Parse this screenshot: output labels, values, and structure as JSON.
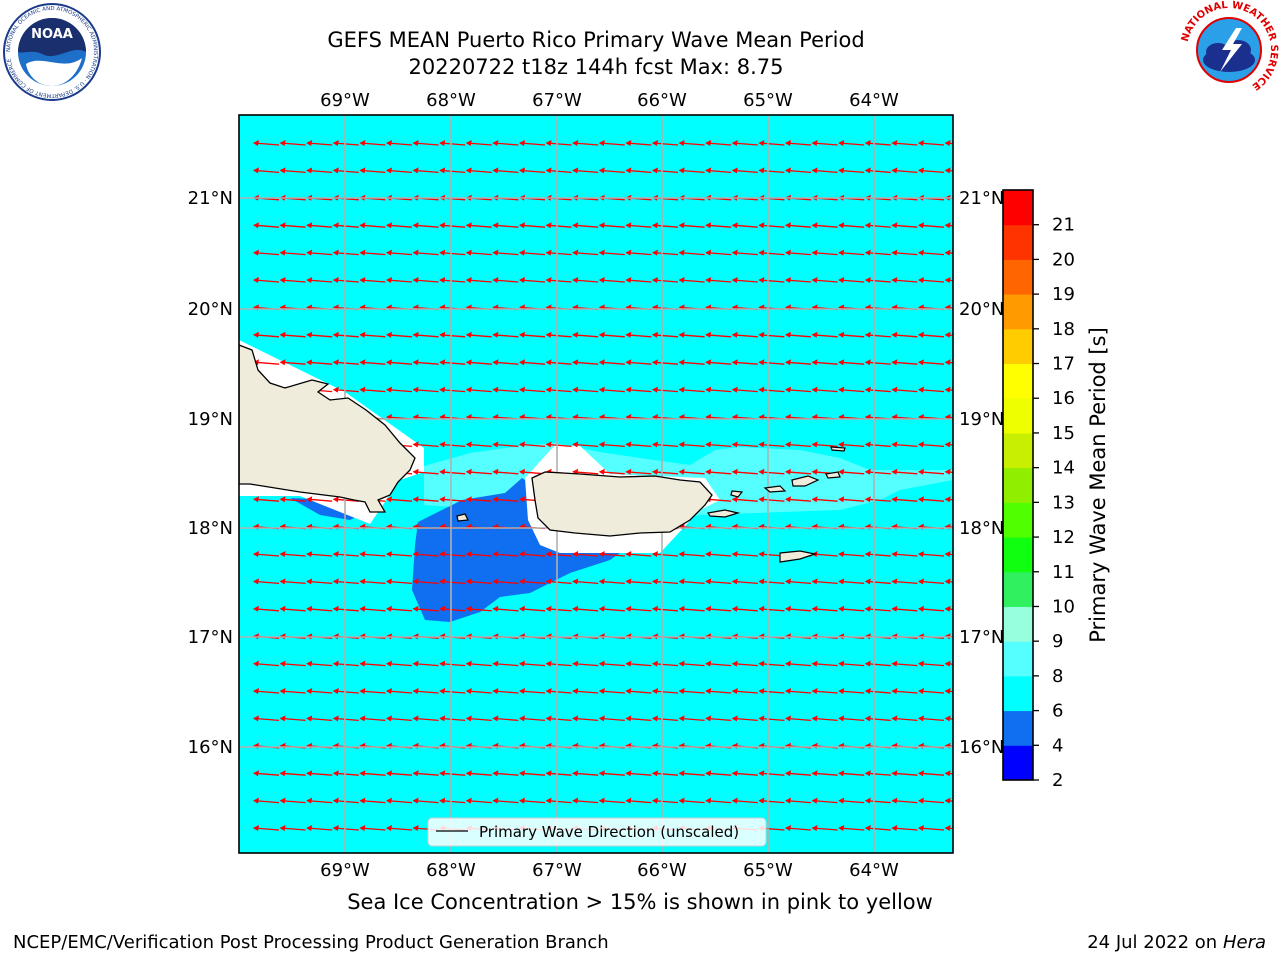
{
  "title_line1": "GEFS MEAN Puerto Rico Primary Wave Mean Period",
  "title_line2": "20220722 t18z 144h fcst   Max: 8.75",
  "subtitle": "Sea Ice Concentration > 15% is shown in pink to yellow",
  "footer_left": "NCEP/EMC/Verification Post Processing Product Generation Branch",
  "footer_right_prefix": "24 Jul 2022 on ",
  "footer_right_host": "Hera",
  "legend_label": "Primary Wave Direction (unscaled)",
  "colorbar_label": "Primary Wave Mean Period [s]",
  "lon_labels": [
    "69°W",
    "68°W",
    "67°W",
    "66°W",
    "65°W",
    "64°W"
  ],
  "lat_labels": [
    "21°N",
    "20°N",
    "19°N",
    "18°N",
    "17°N",
    "16°N"
  ],
  "colorbar_ticks": [
    "2",
    "4",
    "6",
    "8",
    "9",
    "10",
    "11",
    "12",
    "13",
    "14",
    "15",
    "16",
    "17",
    "18",
    "19",
    "20",
    "21"
  ],
  "colorbar_colors": [
    "#0000ff",
    "#0f6ff0",
    "#00ffff",
    "#55ffff",
    "#97ffdd",
    "#30f060",
    "#10ff10",
    "#50ff00",
    "#90ee00",
    "#c8ee00",
    "#eeff00",
    "#ffff00",
    "#ffcc00",
    "#ff9a00",
    "#ff6600",
    "#ff3300",
    "#ff0000"
  ],
  "colors": {
    "ocean": "#00ffff",
    "ocean_dark": "#0f6ff0",
    "ocean_light": "#55ffff",
    "land": "#efecdc",
    "arrow": "#ff0000",
    "grid": "#b0b0b0"
  },
  "logos": {
    "left_text": "NOAA",
    "left_ring": "NATIONAL OCEANIC AND ATMOSPHERIC ADMINISTRATION · U.S. DEPARTMENT OF COMMERCE",
    "right_ring": "NATIONAL WEATHER SERVICE"
  }
}
